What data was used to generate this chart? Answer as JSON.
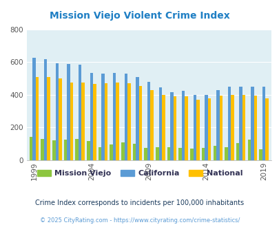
{
  "title": "Mission Viejo Violent Crime Index",
  "years": [
    1999,
    2000,
    2001,
    2002,
    2003,
    2004,
    2005,
    2006,
    2007,
    2008,
    2009,
    2010,
    2011,
    2012,
    2013,
    2014,
    2015,
    2016,
    2017,
    2018,
    2019,
    2020
  ],
  "mission_viejo": [
    140,
    130,
    120,
    125,
    130,
    115,
    80,
    95,
    110,
    100,
    75,
    80,
    80,
    75,
    70,
    75,
    85,
    80,
    105,
    125,
    65,
    0
  ],
  "california": [
    625,
    620,
    595,
    590,
    585,
    535,
    530,
    535,
    530,
    510,
    480,
    445,
    415,
    425,
    400,
    400,
    430,
    450,
    450,
    450,
    450,
    0
  ],
  "national": [
    510,
    510,
    500,
    475,
    475,
    465,
    470,
    475,
    470,
    455,
    430,
    400,
    390,
    390,
    370,
    380,
    395,
    400,
    400,
    395,
    380,
    0
  ],
  "bar_width": 0.27,
  "ylim": [
    0,
    800
  ],
  "yticks": [
    0,
    200,
    400,
    600,
    800
  ],
  "xticks": [
    1999,
    2004,
    2009,
    2014,
    2019
  ],
  "color_mv": "#8dc63f",
  "color_ca": "#5b9bd5",
  "color_na": "#ffc000",
  "bg_color": "#e0eff4",
  "title_color": "#1f7fc4",
  "legend_text_color": "#333355",
  "legend_label_mv": "Mission Viejo",
  "legend_label_ca": "California",
  "legend_label_na": "National",
  "subtitle": "Crime Index corresponds to incidents per 100,000 inhabitants",
  "footer": "© 2025 CityRating.com - https://www.cityrating.com/crime-statistics/",
  "subtitle_color": "#1a3a5c",
  "footer_color": "#5b9bd5"
}
